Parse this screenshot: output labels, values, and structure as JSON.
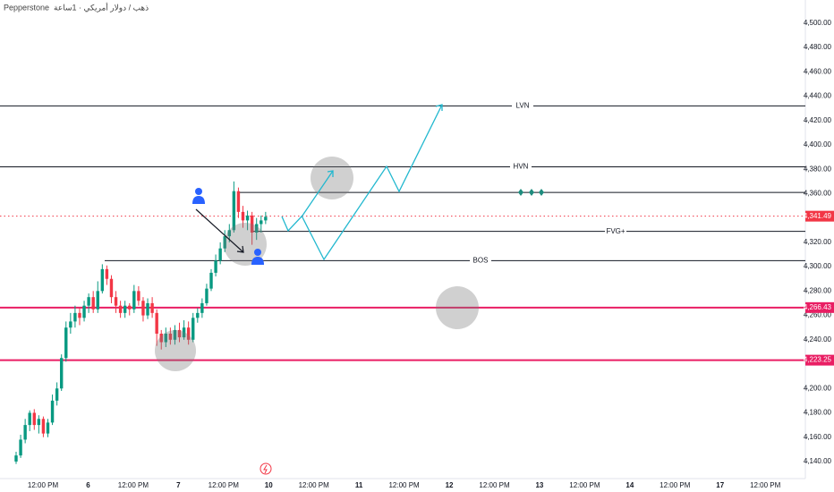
{
  "header": {
    "broker": "Pepperstone",
    "symbol": "ذهب / دولار أمريكي · 1ساعة"
  },
  "chart_data": {
    "type": "candlestick",
    "up_color": "#089981",
    "down_color": "#f23645",
    "ylim": [
      4126,
      4519
    ],
    "yticks": [
      {
        "value": 4500,
        "label": "4,500.00"
      },
      {
        "value": 4480,
        "label": "4,480.00"
      },
      {
        "value": 4460,
        "label": "4,460.00"
      },
      {
        "value": 4440,
        "label": "4,440.00"
      },
      {
        "value": 4420,
        "label": "4,420.00"
      },
      {
        "value": 4400,
        "label": "4,400.00"
      },
      {
        "value": 4380,
        "label": "4,380.00"
      },
      {
        "value": 4360,
        "label": "4,360.00"
      },
      {
        "value": 4320,
        "label": "4,320.00"
      },
      {
        "value": 4300,
        "label": "4,300.00"
      },
      {
        "value": 4280,
        "label": "4,280.00"
      },
      {
        "value": 4260,
        "label": "4,260.00"
      },
      {
        "value": 4240,
        "label": "4,240.00"
      },
      {
        "value": 4200,
        "label": "4,200.00"
      },
      {
        "value": 4180,
        "label": "4,180.00"
      },
      {
        "value": 4160,
        "label": "4,160.00"
      },
      {
        "value": 4140,
        "label": "4,140.00"
      }
    ],
    "x_axis_labels": [
      "12:00 PM",
      "6",
      "12:00 PM",
      "7",
      "12:00 PM",
      "10",
      "12:00 PM",
      "11",
      "12:00 PM",
      "12",
      "12:00 PM",
      "13",
      "12:00 PM",
      "14",
      "12:00 PM",
      "17",
      "12:00 PM"
    ],
    "open": [
      4140,
      4145,
      4158,
      4170,
      4180,
      4170,
      4175,
      4163,
      4172,
      4190,
      4200,
      4225,
      4250,
      4255,
      4262,
      4258,
      4268,
      4275,
      4265,
      4280,
      4298,
      4290,
      4275,
      4268,
      4262,
      4268,
      4265,
      4280,
      4272,
      4260,
      4270,
      4262,
      4245,
      4238,
      4245,
      4240,
      4248,
      4242,
      4250,
      4240,
      4258,
      4262,
      4270,
      4282,
      4295,
      4305,
      4315,
      4325,
      4330,
      4362,
      4345,
      4338,
      4342,
      4328,
      4335,
      4338
    ],
    "close": [
      4145,
      4158,
      4170,
      4180,
      4170,
      4175,
      4163,
      4172,
      4190,
      4200,
      4225,
      4250,
      4255,
      4262,
      4258,
      4268,
      4275,
      4265,
      4280,
      4298,
      4290,
      4275,
      4268,
      4262,
      4268,
      4265,
      4280,
      4272,
      4260,
      4270,
      4262,
      4245,
      4238,
      4245,
      4240,
      4248,
      4242,
      4250,
      4240,
      4258,
      4262,
      4270,
      4282,
      4295,
      4305,
      4315,
      4325,
      4330,
      4362,
      4345,
      4338,
      4342,
      4328,
      4335,
      4338,
      4341
    ],
    "high": [
      4148,
      4162,
      4175,
      4182,
      4183,
      4178,
      4177,
      4175,
      4195,
      4205,
      4228,
      4255,
      4262,
      4268,
      4266,
      4272,
      4278,
      4280,
      4288,
      4302,
      4301,
      4293,
      4280,
      4272,
      4272,
      4270,
      4285,
      4284,
      4275,
      4274,
      4275,
      4265,
      4248,
      4250,
      4250,
      4252,
      4254,
      4256,
      4255,
      4262,
      4266,
      4274,
      4286,
      4298,
      4310,
      4320,
      4330,
      4335,
      4370,
      4365,
      4350,
      4346,
      4345,
      4340,
      4342,
      4345
    ],
    "low": [
      4138,
      4143,
      4155,
      4165,
      4166,
      4163,
      4160,
      4160,
      4170,
      4186,
      4198,
      4222,
      4245,
      4250,
      4252,
      4255,
      4262,
      4262,
      4262,
      4278,
      4285,
      4270,
      4262,
      4258,
      4258,
      4260,
      4262,
      4268,
      4255,
      4257,
      4258,
      4235,
      4232,
      4234,
      4236,
      4236,
      4238,
      4240,
      4236,
      4238,
      4254,
      4258,
      4268,
      4280,
      4292,
      4302,
      4312,
      4320,
      4328,
      4340,
      4332,
      4330,
      4318,
      4322,
      4328,
      4335
    ],
    "levels": [
      {
        "label": "LVN",
        "value": 4432
      },
      {
        "label": "HVN",
        "value": 4382
      },
      {
        "value": 4361
      },
      {
        "label": "FVG+",
        "value": 4329
      },
      {
        "label": "BOS",
        "value": 4305
      }
    ],
    "price_lines": [
      {
        "value": 4341.49,
        "label": "4,341.49"
      },
      {
        "value": 4266.43,
        "label": "4,266.43"
      },
      {
        "value": 4223.25,
        "label": "4,223.25"
      }
    ]
  }
}
